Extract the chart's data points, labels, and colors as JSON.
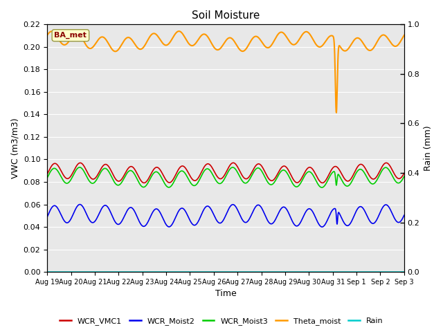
{
  "title": "Soil Moisture",
  "xlabel": "Time",
  "ylabel_left": "VWC (m3/m3)",
  "ylabel_right": "Rain (mm)",
  "ylim_left": [
    0.0,
    0.22
  ],
  "ylim_right": [
    0.0,
    1.0
  ],
  "background_color": "#e8e8e8",
  "annotation_text": "BA_met",
  "annotation_fg": "#8b0000",
  "annotation_bg": "#ffffcc",
  "series": {
    "WCR_VMC1": {
      "color": "#cc0000",
      "lw": 1.2
    },
    "WCR_Moist2": {
      "color": "#0000ee",
      "lw": 1.2
    },
    "WCR_Moist3": {
      "color": "#00cc00",
      "lw": 1.2
    },
    "Theta_moist": {
      "color": "#ff9900",
      "lw": 1.5
    },
    "Rain": {
      "color": "#00cccc",
      "lw": 1.2
    }
  },
  "legend_colors": {
    "WCR_VMC1": "#cc0000",
    "WCR_Moist2": "#0000ee",
    "WCR_Moist3": "#00cc00",
    "Theta_moist": "#ff9900",
    "Rain": "#00cccc"
  },
  "xtick_labels": [
    "Aug 19",
    "Aug 20",
    "Aug 21",
    "Aug 22",
    "Aug 23",
    "Aug 24",
    "Aug 25",
    "Aug 26",
    "Aug 27",
    "Aug 28",
    "Aug 29",
    "Aug 30",
    "Aug 31",
    "Sep 1",
    "Sep 2",
    "Sep 3"
  ],
  "yticks_left": [
    0.0,
    0.02,
    0.04,
    0.06,
    0.08,
    0.1,
    0.12,
    0.14,
    0.16,
    0.18,
    0.2,
    0.22
  ],
  "yticks_right": [
    0.0,
    0.2,
    0.4,
    0.6,
    0.8,
    1.0
  ]
}
